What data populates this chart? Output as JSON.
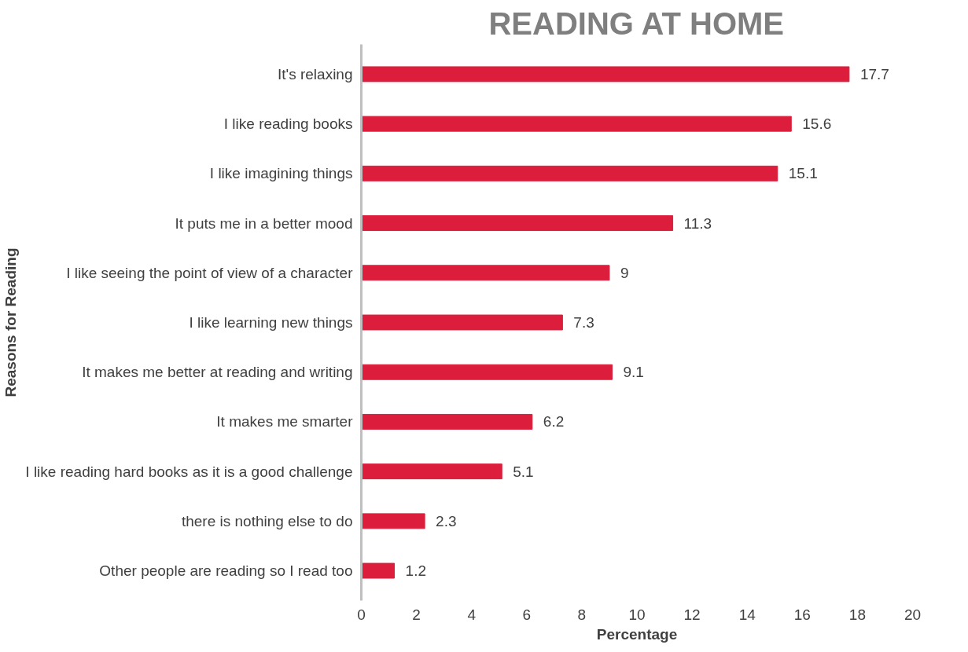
{
  "chart_data": {
    "type": "bar",
    "orientation": "horizontal",
    "title": "READING AT HOME",
    "xlabel": "Percentage",
    "ylabel": "Reasons for Reading",
    "categories": [
      "It's relaxing",
      "I like reading books",
      "I like imagining things",
      "It puts me in a better mood",
      "I like seeing the point of view of a character",
      "I like learning new things",
      "It makes me better at reading and writing",
      "It makes me smarter",
      "I like reading hard books as it is a good challenge",
      "there is nothing else to do",
      "Other people are reading so I read too"
    ],
    "values": [
      17.7,
      15.6,
      15.1,
      11.3,
      9,
      7.3,
      9.1,
      6.2,
      5.1,
      2.3,
      1.2
    ],
    "color": "#dc1e3c",
    "xlim": [
      0,
      20
    ],
    "xticks": [
      0,
      2,
      4,
      6,
      8,
      10,
      12,
      14,
      16,
      18,
      20
    ],
    "data_labels": true
  }
}
